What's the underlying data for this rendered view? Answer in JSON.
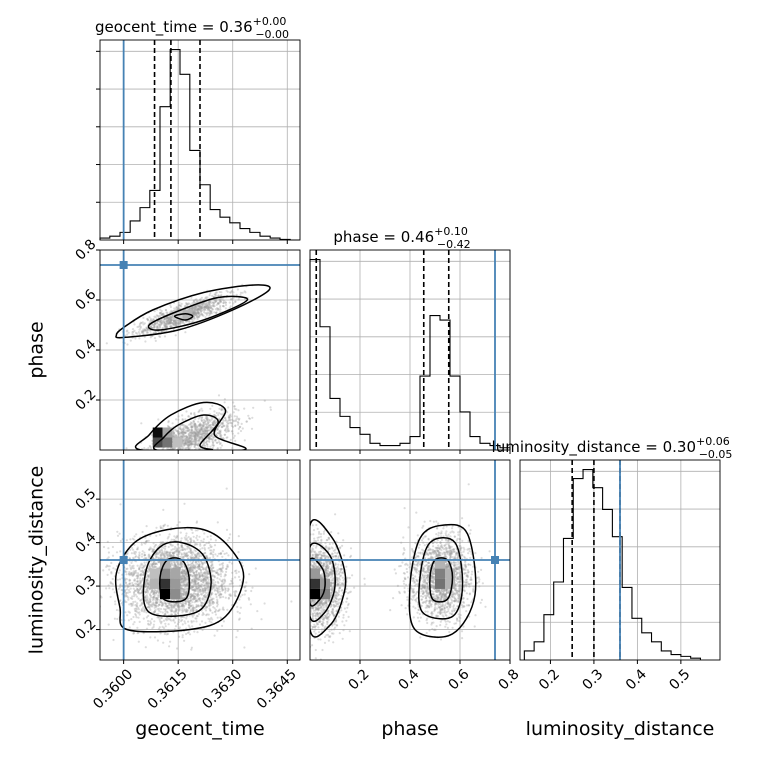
{
  "chart_data": {
    "type": "corner",
    "parameters": [
      {
        "name": "geocent_time",
        "label": "geocent_time",
        "range": [
          0.35935,
          0.36485
        ],
        "ticks": [
          0.36,
          0.3615,
          0.363,
          0.3645
        ],
        "tick_labels": [
          "0.3600",
          "0.3615",
          "0.3630",
          "0.3645"
        ],
        "truth": 0.36,
        "quantiles": [
          0.36085,
          0.3613,
          0.3621
        ],
        "title_main": "geocent_time = 0.36",
        "title_sup": "+0.00",
        "title_sub": "−0.00",
        "histogram": {
          "edges": [
            0.35935,
            0.35962,
            0.3599,
            0.36018,
            0.36045,
            0.36072,
            0.361,
            0.36128,
            0.36155,
            0.36182,
            0.3621,
            0.36238,
            0.36265,
            0.36292,
            0.3632,
            0.36347,
            0.36375,
            0.36403,
            0.3643,
            0.36458,
            0.36485
          ],
          "counts": [
            0.01,
            0.02,
            0.04,
            0.1,
            0.17,
            0.26,
            0.7,
            1.0,
            0.87,
            0.47,
            0.29,
            0.16,
            0.12,
            0.09,
            0.06,
            0.04,
            0.02,
            0.01,
            0.003,
            0.0
          ]
        }
      },
      {
        "name": "phase",
        "label": "phase",
        "range": [
          0.0,
          0.8
        ],
        "ticks": [
          0.2,
          0.4,
          0.6,
          0.8
        ],
        "tick_labels": [
          "0.2",
          "0.4",
          "0.6",
          "0.8"
        ],
        "truth": 0.74,
        "quantiles": [
          0.025,
          0.455,
          0.555
        ],
        "title_main": "phase = 0.46",
        "title_sup": "+0.10",
        "title_sub": "−0.42",
        "histogram": {
          "edges": [
            0.0,
            0.04,
            0.08,
            0.12,
            0.16,
            0.2,
            0.24,
            0.28,
            0.32,
            0.36,
            0.4,
            0.44,
            0.48,
            0.52,
            0.56,
            0.6,
            0.64,
            0.68,
            0.72,
            0.76,
            0.8
          ],
          "counts": [
            0.85,
            0.55,
            0.23,
            0.15,
            0.1,
            0.07,
            0.03,
            0.02,
            0.02,
            0.03,
            0.06,
            0.33,
            0.6,
            0.58,
            0.33,
            0.17,
            0.06,
            0.03,
            0.02,
            0.01
          ]
        }
      },
      {
        "name": "luminosity_distance",
        "label": "luminosity_distance",
        "range": [
          0.13,
          0.59
        ],
        "ticks": [
          0.2,
          0.3,
          0.4,
          0.5
        ],
        "tick_labels": [
          "0.2",
          "0.3",
          "0.4",
          "0.5"
        ],
        "truth": 0.36,
        "quantiles": [
          0.25,
          0.3,
          0.36
        ],
        "title_main": "luminosity_distance = 0.30",
        "title_sup": "+0.06",
        "title_sub": "−0.05",
        "histogram": {
          "edges": [
            0.14,
            0.1625,
            0.185,
            0.2075,
            0.23,
            0.2525,
            0.275,
            0.2975,
            0.32,
            0.3425,
            0.365,
            0.3875,
            0.41,
            0.4325,
            0.455,
            0.4775,
            0.5,
            0.5225,
            0.545
          ],
          "counts": [
            0.05,
            0.1,
            0.25,
            0.43,
            0.67,
            1.0,
            1.05,
            0.95,
            0.83,
            0.68,
            0.4,
            0.23,
            0.15,
            0.1,
            0.05,
            0.03,
            0.02,
            0.01
          ]
        }
      }
    ],
    "pairs": [
      {
        "x": "geocent_time",
        "y": "phase",
        "blobs": [
          {
            "cx": 0.36165,
            "cy": 0.54,
            "sx": 0.00065,
            "sy": 0.04,
            "rho": 0.85,
            "n": 1100
          },
          {
            "cx": 0.3619,
            "cy": 0.05,
            "sx": 0.0006,
            "sy": 0.05,
            "rho": 0.6,
            "n": 1200
          }
        ],
        "contours": [
          {
            "level": 1,
            "points": [
              [
                0.3617,
                0.52
              ],
              [
                0.3619,
                0.535
              ],
              [
                0.3617,
                0.545
              ],
              [
                0.3614,
                0.535
              ]
            ]
          },
          {
            "level": 2,
            "points": [
              [
                0.361,
                0.48
              ],
              [
                0.3622,
                0.52
              ],
              [
                0.3634,
                0.6
              ],
              [
                0.3626,
                0.61
              ],
              [
                0.3614,
                0.55
              ],
              [
                0.3607,
                0.5
              ]
            ]
          },
          {
            "level": 3,
            "points": [
              [
                0.36,
                0.45
              ],
              [
                0.3615,
                0.48
              ],
              [
                0.363,
                0.56
              ],
              [
                0.364,
                0.64
              ],
              [
                0.3636,
                0.66
              ],
              [
                0.3622,
                0.63
              ],
              [
                0.3608,
                0.56
              ],
              [
                0.36,
                0.49
              ],
              [
                0.3598,
                0.46
              ]
            ]
          },
          {
            "level": 2,
            "points": [
              [
                0.3609,
                0.0
              ],
              [
                0.3611,
                0.05
              ],
              [
                0.3615,
                0.1
              ],
              [
                0.3622,
                0.14
              ],
              [
                0.3626,
                0.11
              ],
              [
                0.3621,
                0.02
              ],
              [
                0.3624,
                0.0
              ]
            ]
          },
          {
            "level": 3,
            "points": [
              [
                0.3605,
                0.0
              ],
              [
                0.3607,
                0.06
              ],
              [
                0.3613,
                0.14
              ],
              [
                0.3622,
                0.19
              ],
              [
                0.3628,
                0.16
              ],
              [
                0.3625,
                0.06
              ],
              [
                0.3633,
                0.0
              ]
            ]
          }
        ],
        "density": [
          {
            "x": 0.3608,
            "y": 0.05,
            "w": 0.00027,
            "h": 0.04,
            "v": 0.95
          },
          {
            "x": 0.3608,
            "y": 0.01,
            "w": 0.00027,
            "h": 0.04,
            "v": 0.7
          },
          {
            "x": 0.36107,
            "y": 0.01,
            "w": 0.00027,
            "h": 0.04,
            "v": 0.55
          },
          {
            "x": 0.36107,
            "y": 0.05,
            "w": 0.00027,
            "h": 0.04,
            "v": 0.35
          },
          {
            "x": 0.36135,
            "y": 0.01,
            "w": 0.00027,
            "h": 0.04,
            "v": 0.25
          },
          {
            "x": 0.36162,
            "y": 0.52,
            "w": 0.00027,
            "h": 0.04,
            "v": 0.3
          },
          {
            "x": 0.36135,
            "y": 0.52,
            "w": 0.00027,
            "h": 0.04,
            "v": 0.2
          }
        ]
      },
      {
        "x": "geocent_time",
        "y": "luminosity_distance",
        "blobs": [
          {
            "cx": 0.3614,
            "cy": 0.31,
            "sx": 0.00075,
            "sy": 0.05,
            "rho": 0.0,
            "n": 3000
          }
        ],
        "contours": [
          {
            "level": 1,
            "points": [
              [
                0.3611,
                0.27
              ],
              [
                0.3617,
                0.27
              ],
              [
                0.3618,
                0.32
              ],
              [
                0.3616,
                0.36
              ],
              [
                0.3612,
                0.36
              ],
              [
                0.361,
                0.32
              ]
            ]
          },
          {
            "level": 2,
            "points": [
              [
                0.3607,
                0.24
              ],
              [
                0.362,
                0.24
              ],
              [
                0.3624,
                0.3
              ],
              [
                0.3622,
                0.37
              ],
              [
                0.3616,
                0.4
              ],
              [
                0.361,
                0.39
              ],
              [
                0.3606,
                0.33
              ]
            ]
          },
          {
            "level": 3,
            "points": [
              [
                0.3601,
                0.2
              ],
              [
                0.3618,
                0.2
              ],
              [
                0.3628,
                0.23
              ],
              [
                0.3633,
                0.32
              ],
              [
                0.3629,
                0.39
              ],
              [
                0.3622,
                0.43
              ],
              [
                0.3612,
                0.43
              ],
              [
                0.3603,
                0.4
              ],
              [
                0.3598,
                0.33
              ],
              [
                0.3599,
                0.25
              ]
            ]
          }
        ],
        "density": [
          {
            "x": 0.361,
            "y": 0.27,
            "w": 0.00028,
            "h": 0.0235,
            "v": 1.0
          },
          {
            "x": 0.361,
            "y": 0.2935,
            "w": 0.00028,
            "h": 0.0235,
            "v": 0.8
          },
          {
            "x": 0.361,
            "y": 0.317,
            "w": 0.00028,
            "h": 0.0235,
            "v": 0.45
          },
          {
            "x": 0.361,
            "y": 0.34,
            "w": 0.00028,
            "h": 0.0235,
            "v": 0.3
          },
          {
            "x": 0.36128,
            "y": 0.27,
            "w": 0.00028,
            "h": 0.0235,
            "v": 0.45
          },
          {
            "x": 0.36128,
            "y": 0.2935,
            "w": 0.00028,
            "h": 0.0235,
            "v": 0.4
          },
          {
            "x": 0.36128,
            "y": 0.317,
            "w": 0.00028,
            "h": 0.0235,
            "v": 0.35
          },
          {
            "x": 0.36072,
            "y": 0.2935,
            "w": 0.00028,
            "h": 0.0235,
            "v": 0.3
          },
          {
            "x": 0.36072,
            "y": 0.317,
            "w": 0.00028,
            "h": 0.0235,
            "v": 0.25
          }
        ]
      },
      {
        "x": "phase",
        "y": "luminosity_distance",
        "blobs": [
          {
            "cx": 0.04,
            "cy": 0.3,
            "sx": 0.05,
            "sy": 0.05,
            "rho": 0.0,
            "n": 1700
          },
          {
            "cx": 0.52,
            "cy": 0.32,
            "sx": 0.06,
            "sy": 0.05,
            "rho": 0.0,
            "n": 1700
          }
        ],
        "contours": [
          {
            "level": 1,
            "points": [
              [
                0.0,
                0.26
              ],
              [
                0.04,
                0.27
              ],
              [
                0.06,
                0.3
              ],
              [
                0.05,
                0.34
              ],
              [
                0.0,
                0.36
              ]
            ]
          },
          {
            "level": 2,
            "points": [
              [
                0.0,
                0.23
              ],
              [
                0.06,
                0.24
              ],
              [
                0.1,
                0.3
              ],
              [
                0.08,
                0.37
              ],
              [
                0.0,
                0.39
              ]
            ]
          },
          {
            "level": 3,
            "points": [
              [
                0.0,
                0.2
              ],
              [
                0.08,
                0.21
              ],
              [
                0.13,
                0.27
              ],
              [
                0.14,
                0.33
              ],
              [
                0.09,
                0.41
              ],
              [
                0.0,
                0.44
              ]
            ]
          },
          {
            "level": 1,
            "points": [
              [
                0.49,
                0.27
              ],
              [
                0.55,
                0.27
              ],
              [
                0.57,
                0.32
              ],
              [
                0.55,
                0.36
              ],
              [
                0.5,
                0.36
              ],
              [
                0.48,
                0.32
              ]
            ]
          },
          {
            "level": 2,
            "points": [
              [
                0.45,
                0.24
              ],
              [
                0.57,
                0.23
              ],
              [
                0.61,
                0.3
              ],
              [
                0.58,
                0.4
              ],
              [
                0.48,
                0.4
              ],
              [
                0.44,
                0.32
              ]
            ]
          },
          {
            "level": 3,
            "points": [
              [
                0.42,
                0.2
              ],
              [
                0.57,
                0.19
              ],
              [
                0.66,
                0.28
              ],
              [
                0.63,
                0.42
              ],
              [
                0.53,
                0.44
              ],
              [
                0.44,
                0.41
              ],
              [
                0.4,
                0.3
              ]
            ]
          }
        ],
        "density": [
          {
            "x": 0.0,
            "y": 0.27,
            "w": 0.04,
            "h": 0.0235,
            "v": 1.0
          },
          {
            "x": 0.0,
            "y": 0.2935,
            "w": 0.04,
            "h": 0.0235,
            "v": 0.8
          },
          {
            "x": 0.04,
            "y": 0.27,
            "w": 0.04,
            "h": 0.0235,
            "v": 0.5
          },
          {
            "x": 0.0,
            "y": 0.317,
            "w": 0.04,
            "h": 0.0235,
            "v": 0.4
          },
          {
            "x": 0.04,
            "y": 0.2935,
            "w": 0.04,
            "h": 0.0235,
            "v": 0.4
          },
          {
            "x": 0.5,
            "y": 0.2935,
            "w": 0.04,
            "h": 0.0235,
            "v": 0.55
          },
          {
            "x": 0.5,
            "y": 0.317,
            "w": 0.04,
            "h": 0.0235,
            "v": 0.5
          },
          {
            "x": 0.5,
            "y": 0.34,
            "w": 0.04,
            "h": 0.0235,
            "v": 0.3
          },
          {
            "x": 0.54,
            "y": 0.2935,
            "w": 0.04,
            "h": 0.0235,
            "v": 0.3
          },
          {
            "x": 0.54,
            "y": 0.317,
            "w": 0.04,
            "h": 0.0235,
            "v": 0.3
          }
        ]
      }
    ],
    "colors": {
      "truth": "#4682b4",
      "hist": "#000000",
      "contour": "#000000",
      "grid": "#b0b0b0",
      "point": "#9a9a9a"
    },
    "grid": true
  }
}
